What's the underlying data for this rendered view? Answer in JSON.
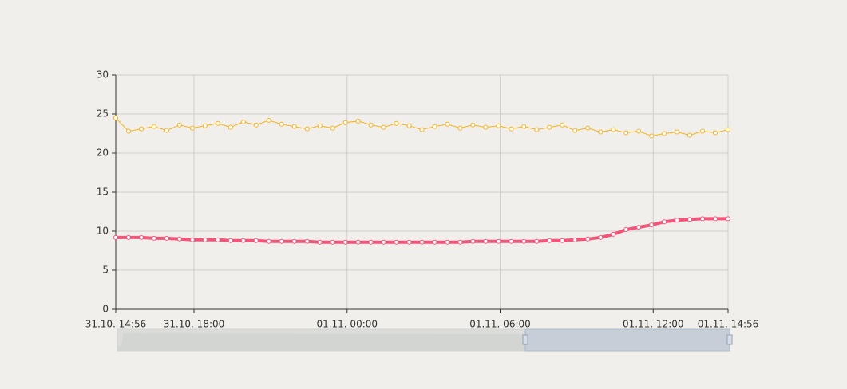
{
  "chart_data": {
    "type": "line",
    "x": [
      "31.10. 14:56",
      "31.10. 15:26",
      "31.10. 15:56",
      "31.10. 16:26",
      "31.10. 16:56",
      "31.10. 17:26",
      "31.10. 17:56",
      "31.10. 18:26",
      "31.10. 18:56",
      "31.10. 19:26",
      "31.10. 19:56",
      "31.10. 20:26",
      "31.10. 20:56",
      "31.10. 21:26",
      "31.10. 21:56",
      "31.10. 22:26",
      "31.10. 22:56",
      "31.10. 23:26",
      "31.10. 23:56",
      "01.11. 00:26",
      "01.11. 00:56",
      "01.11. 01:26",
      "01.11. 01:56",
      "01.11. 02:26",
      "01.11. 02:56",
      "01.11. 03:26",
      "01.11. 03:56",
      "01.11. 04:26",
      "01.11. 04:56",
      "01.11. 05:26",
      "01.11. 05:56",
      "01.11. 06:26",
      "01.11. 06:56",
      "01.11. 07:26",
      "01.11. 07:56",
      "01.11. 08:26",
      "01.11. 08:56",
      "01.11. 09:26",
      "01.11. 09:56",
      "01.11. 10:26",
      "01.11. 10:56",
      "01.11. 11:26",
      "01.11. 11:56",
      "01.11. 12:26",
      "01.11. 12:56",
      "01.11. 13:26",
      "01.11. 13:56",
      "01.11. 14:26",
      "01.11. 14:56"
    ],
    "series": [
      {
        "color": "#f5b21b",
        "values": [
          24.5,
          22.8,
          23.1,
          23.4,
          22.9,
          23.6,
          23.2,
          23.5,
          23.8,
          23.3,
          24.0,
          23.6,
          24.2,
          23.7,
          23.4,
          23.1,
          23.5,
          23.2,
          23.9,
          24.1,
          23.6,
          23.3,
          23.8,
          23.5,
          23.0,
          23.4,
          23.7,
          23.2,
          23.6,
          23.3,
          23.5,
          23.1,
          23.4,
          23.0,
          23.3,
          23.6,
          22.9,
          23.2,
          22.7,
          23.0,
          22.6,
          22.8,
          22.2,
          22.5,
          22.7,
          22.3,
          22.8,
          22.6,
          23.0
        ]
      },
      {
        "color": "#f2557a",
        "values": [
          9.2,
          9.2,
          9.2,
          9.1,
          9.1,
          9.0,
          8.9,
          8.9,
          8.9,
          8.8,
          8.8,
          8.8,
          8.7,
          8.7,
          8.7,
          8.7,
          8.6,
          8.6,
          8.6,
          8.6,
          8.6,
          8.6,
          8.6,
          8.6,
          8.6,
          8.6,
          8.6,
          8.6,
          8.7,
          8.7,
          8.7,
          8.7,
          8.7,
          8.7,
          8.8,
          8.8,
          8.9,
          9.0,
          9.2,
          9.6,
          10.2,
          10.5,
          10.8,
          11.2,
          11.4,
          11.5,
          11.6,
          11.6,
          11.6
        ]
      }
    ],
    "xlim": [
      "31.10. 14:56",
      "01.11. 14:56"
    ],
    "xticks": [
      "31.10. 14:56",
      "31.10. 18:00",
      "01.11. 00:00",
      "01.11. 06:00",
      "01.11. 12:00",
      "01.11. 14:56"
    ],
    "ylim": [
      0,
      30
    ],
    "yticks": [
      0,
      5,
      10,
      15,
      20,
      25,
      30
    ],
    "grid": true
  }
}
